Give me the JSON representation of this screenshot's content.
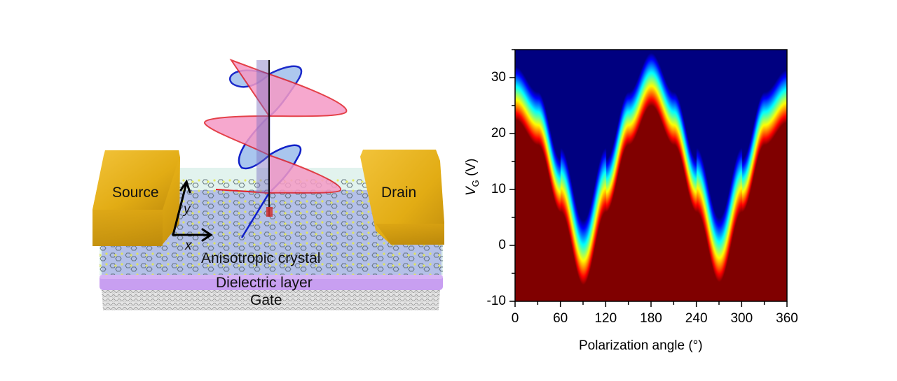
{
  "figure": {
    "left_panel": {
      "type": "device-schematic",
      "labels": {
        "source": "Source",
        "drain": "Drain",
        "crystal": "Anisotropic crystal",
        "dielectric": "Dielectric layer",
        "gate": "Gate",
        "axis_x": "x",
        "axis_y": "y"
      },
      "colors": {
        "electrode": "#e8b317",
        "electrode_shadow": "#b8860b",
        "crystal_layer": "#a9b3e6",
        "crystal_top": "#d8efe8",
        "dielectric": "#c59af0",
        "gate": "#cfcfcf",
        "wave_e": "#e0202a",
        "wave_e_fill": "#f59ac6",
        "wave_b": "#1020c8",
        "wave_b_fill": "#a9c6ee",
        "molecule": "#5c6e78",
        "sulfur": "#e4e84a"
      }
    }
  },
  "chart_data": {
    "type": "heatmap",
    "title": "",
    "xlabel": "Polarization angle (°)",
    "ylabel": "V_G (V)",
    "ylabel_main": "V",
    "ylabel_sub": "G",
    "ylabel_unit": " (V)",
    "xlim": [
      0,
      360
    ],
    "ylim": [
      -10,
      35
    ],
    "x_ticks": [
      0,
      60,
      120,
      180,
      240,
      300,
      360
    ],
    "x_tick_labels": [
      "0",
      "60",
      "120",
      "180",
      "240",
      "300",
      "360"
    ],
    "x_minor_step": 30,
    "y_ticks": [
      -10,
      0,
      10,
      20,
      30
    ],
    "y_tick_labels": [
      "-10",
      "0",
      "10",
      "20",
      "30"
    ],
    "y_minor_step": 5,
    "grid": false,
    "colormap": "jet (red = high, blue = low)",
    "colorbar": false,
    "description": "Transition boundary (red→blue) follows a periodic function of polarization angle with period 180°; minima near 90° and 270°, maxima near 0°/180°/360°.",
    "boundary_red_edge": {
      "x": [
        0,
        30,
        60,
        90,
        120,
        150,
        180,
        210,
        240,
        270,
        300,
        330,
        360
      ],
      "y": [
        22.5,
        18,
        6,
        -7,
        6,
        18,
        25,
        18,
        6,
        -6.5,
        6,
        18,
        22
      ]
    },
    "boundary_yellow": {
      "x": [
        0,
        30,
        60,
        90,
        120,
        150,
        180,
        210,
        240,
        270,
        300,
        330,
        360
      ],
      "y": [
        24,
        20,
        9,
        -4.5,
        9,
        20,
        26.5,
        20,
        9,
        -4,
        9,
        20,
        24
      ]
    },
    "boundary_green": {
      "x": [
        0,
        30,
        60,
        90,
        120,
        150,
        180,
        210,
        240,
        270,
        300,
        330,
        360
      ],
      "y": [
        27,
        23,
        13,
        1,
        13,
        23,
        29,
        23,
        13,
        1.5,
        13,
        23,
        27
      ]
    },
    "boundary_cyan": {
      "x": [
        0,
        30,
        60,
        90,
        120,
        150,
        180,
        210,
        240,
        270,
        300,
        330,
        360
      ],
      "y": [
        30,
        26.5,
        17,
        5,
        17,
        26.5,
        31,
        26.5,
        17,
        5,
        17,
        26.5,
        30
      ]
    },
    "minima": [
      {
        "x": 90,
        "y": -7
      },
      {
        "x": 270,
        "y": -6.5
      }
    ],
    "maxima": [
      {
        "x": 0,
        "y": 22.5
      },
      {
        "x": 180,
        "y": 25
      },
      {
        "x": 360,
        "y": 22
      }
    ]
  }
}
